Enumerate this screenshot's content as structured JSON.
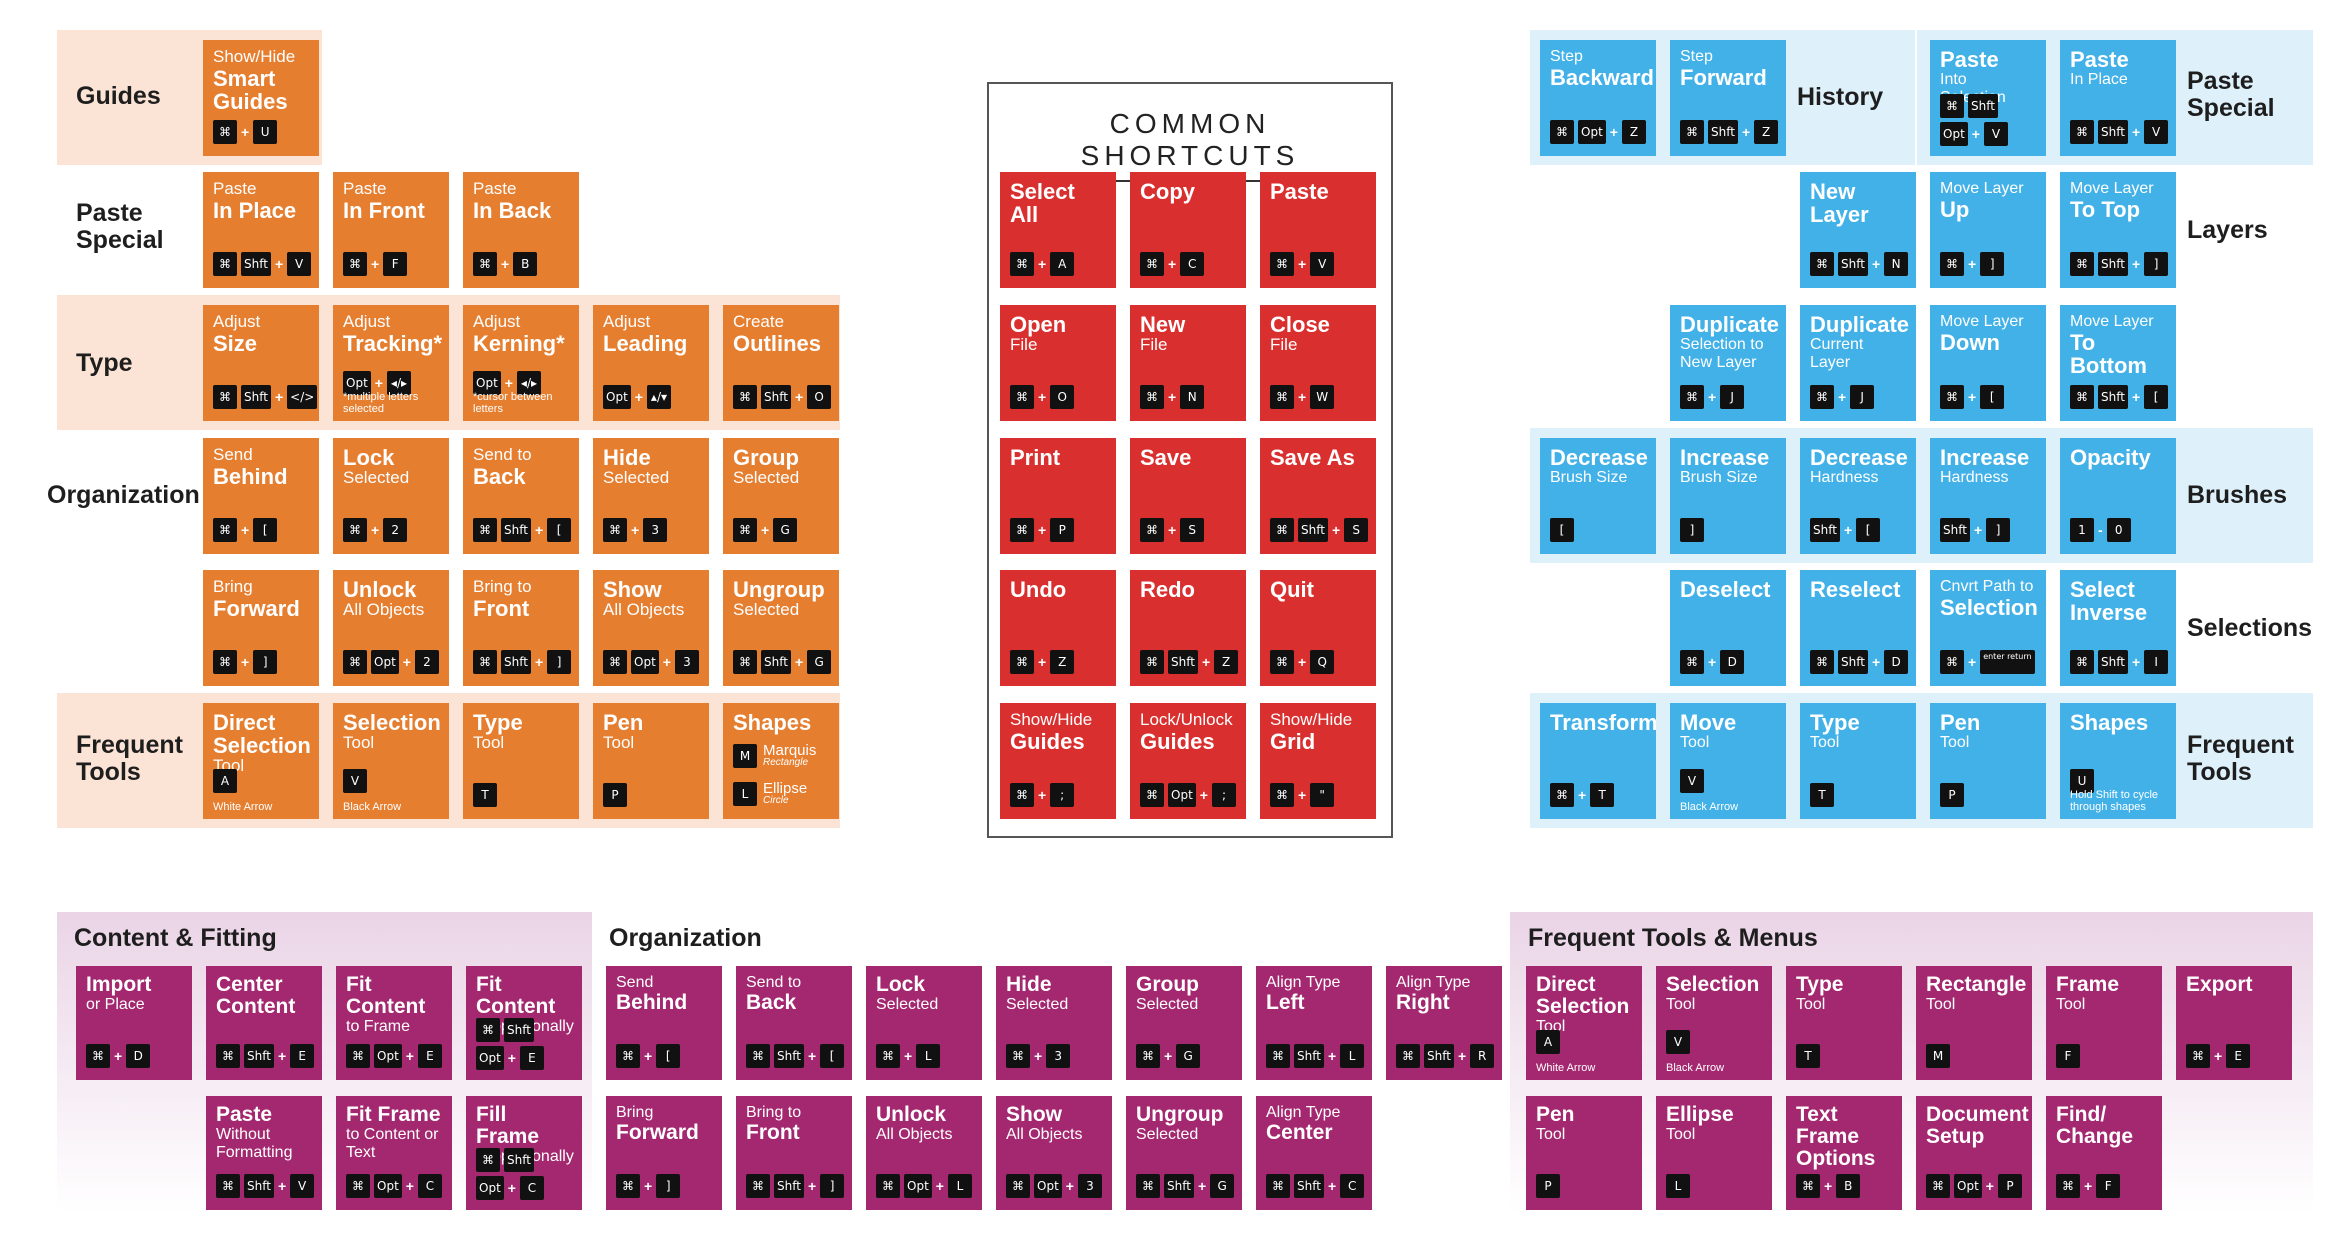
{
  "common_title": "COMMON SHORTCUTS",
  "colors": {
    "illustrator_tile": "#e67e2f",
    "illustrator_band": "#fbe4d5",
    "common_tile": "#d9302f",
    "photoshop_tile": "#42b1e8",
    "photoshop_band": "#def1fb",
    "indesign_tile": "#a3286f",
    "indesign_band": "#ead4e6"
  },
  "ai_labels": {
    "guides": "Guides",
    "paste_special": [
      "Paste",
      "Special"
    ],
    "type": "Type",
    "organization": "Organization",
    "frequent_tools": [
      "Frequent",
      "Tools"
    ]
  },
  "ai_tiles": [
    {
      "pre": "Show/Hide",
      "big": [
        "Smart",
        "Guides"
      ],
      "keys": [
        "⌘",
        "+",
        "U"
      ],
      "notes": []
    },
    {
      "pre": "Paste",
      "big": [
        "In Place"
      ],
      "keys": [
        "⌘",
        "Shft",
        "+",
        "V"
      ],
      "notes": []
    },
    {
      "pre": "Paste",
      "big": [
        "In Front"
      ],
      "keys": [
        "⌘",
        "+",
        "F"
      ],
      "notes": []
    },
    {
      "pre": "Paste",
      "big": [
        "In Back"
      ],
      "keys": [
        "⌘",
        "+",
        "B"
      ],
      "notes": []
    },
    {
      "pre": "Adjust",
      "big": [
        "Size"
      ],
      "keys": [
        "⌘",
        "Shft",
        "+",
        "</>"
      ],
      "notes": []
    },
    {
      "pre": "Adjust",
      "big": [
        "Tracking*"
      ],
      "keys": [
        "Opt",
        "+",
        "◂/▸"
      ],
      "notes": [
        "*multiple letters selected"
      ]
    },
    {
      "pre": "Adjust",
      "big": [
        "Kerning*"
      ],
      "keys": [
        "Opt",
        "+",
        "◂/▸"
      ],
      "notes": [
        "*cursor between letters"
      ]
    },
    {
      "pre": "Adjust",
      "big": [
        "Leading"
      ],
      "keys": [
        "Opt",
        "+",
        "▴/▾"
      ],
      "notes": []
    },
    {
      "pre": "Create",
      "big": [
        "Outlines"
      ],
      "keys": [
        "⌘",
        "Shft",
        "+",
        "O"
      ],
      "notes": []
    },
    {
      "pre": "Send",
      "big": [
        "Behind"
      ],
      "keys": [
        "⌘",
        "+",
        "["
      ],
      "notes": []
    },
    {
      "pre": "",
      "big": [
        "Lock"
      ],
      "post": "Selected",
      "keys": [
        "⌘",
        "+",
        "2"
      ],
      "notes": []
    },
    {
      "pre": "Send to",
      "big": [
        "Back"
      ],
      "keys": [
        "⌘",
        "Shft",
        "+",
        "["
      ],
      "notes": []
    },
    {
      "pre": "",
      "big": [
        "Hide"
      ],
      "post": "Selected",
      "keys": [
        "⌘",
        "+",
        "3"
      ],
      "notes": []
    },
    {
      "pre": "",
      "big": [
        "Group"
      ],
      "post": "Selected",
      "keys": [
        "⌘",
        "+",
        "G"
      ],
      "notes": []
    },
    {
      "pre": "Bring",
      "big": [
        "Forward"
      ],
      "keys": [
        "⌘",
        "+",
        "]"
      ],
      "notes": []
    },
    {
      "pre": "",
      "big": [
        "Unlock"
      ],
      "post": "All Objects",
      "keys": [
        "⌘",
        "Opt",
        "+",
        "2"
      ],
      "notes": []
    },
    {
      "pre": "Bring to",
      "big": [
        "Front"
      ],
      "keys": [
        "⌘",
        "Shft",
        "+",
        "]"
      ],
      "notes": []
    },
    {
      "pre": "",
      "big": [
        "Show"
      ],
      "post": "All Objects",
      "keys": [
        "⌘",
        "Opt",
        "+",
        "3"
      ],
      "notes": []
    },
    {
      "pre": "",
      "big": [
        "Ungroup"
      ],
      "post": "Selected",
      "keys": [
        "⌘",
        "Shft",
        "+",
        "G"
      ],
      "notes": []
    },
    {
      "pre": "",
      "big": [
        "Direct",
        "Selection"
      ],
      "post": "Tool",
      "keys": [
        "A"
      ],
      "notes": [
        "White Arrow"
      ]
    },
    {
      "pre": "",
      "big": [
        "Selection"
      ],
      "post": "Tool",
      "keys": [
        "V"
      ],
      "notes": [
        "Black Arrow"
      ]
    },
    {
      "pre": "",
      "big": [
        "Type"
      ],
      "post": "Tool",
      "keys": [
        "T"
      ],
      "notes": []
    },
    {
      "pre": "",
      "big": [
        "Pen"
      ],
      "post": "Tool",
      "keys": [
        "P"
      ],
      "notes": []
    },
    {
      "pre": "",
      "big": [
        "Shapes"
      ],
      "keys": [],
      "notes": [],
      "shapes": [
        {
          "key": "M",
          "name": "Marquis",
          "sub": "Rectangle"
        },
        {
          "key": "L",
          "name": "Ellipse",
          "sub": "Circle"
        }
      ]
    }
  ],
  "common_tiles": [
    {
      "pre": "",
      "big": [
        "Select",
        "All"
      ],
      "keys": [
        "⌘",
        "+",
        "A"
      ]
    },
    {
      "pre": "",
      "big": [
        "Copy"
      ],
      "keys": [
        "⌘",
        "+",
        "C"
      ]
    },
    {
      "pre": "",
      "big": [
        "Paste"
      ],
      "keys": [
        "⌘",
        "+",
        "V"
      ]
    },
    {
      "pre": "",
      "big": [
        "Open"
      ],
      "post": "File",
      "keys": [
        "⌘",
        "+",
        "O"
      ]
    },
    {
      "pre": "",
      "big": [
        "New"
      ],
      "post": "File",
      "keys": [
        "⌘",
        "+",
        "N"
      ]
    },
    {
      "pre": "",
      "big": [
        "Close"
      ],
      "post": "File",
      "keys": [
        "⌘",
        "+",
        "W"
      ]
    },
    {
      "pre": "",
      "big": [
        "Print"
      ],
      "keys": [
        "⌘",
        "+",
        "P"
      ]
    },
    {
      "pre": "",
      "big": [
        "Save"
      ],
      "keys": [
        "⌘",
        "+",
        "S"
      ]
    },
    {
      "pre": "",
      "big": [
        "Save As"
      ],
      "keys": [
        "⌘",
        "Shft",
        "+",
        "S"
      ]
    },
    {
      "pre": "",
      "big": [
        "Undo"
      ],
      "keys": [
        "⌘",
        "+",
        "Z"
      ]
    },
    {
      "pre": "",
      "big": [
        "Redo"
      ],
      "keys": [
        "⌘",
        "Shft",
        "+",
        "Z"
      ]
    },
    {
      "pre": "",
      "big": [
        "Quit"
      ],
      "keys": [
        "⌘",
        "+",
        "Q"
      ]
    },
    {
      "pre": "Show/Hide",
      "big": [
        "Guides"
      ],
      "keys": [
        "⌘",
        "+",
        ";"
      ]
    },
    {
      "pre": "Lock/Unlock",
      "big": [
        "Guides"
      ],
      "keys": [
        "⌘",
        "Opt",
        "+",
        ";"
      ]
    },
    {
      "pre": "Show/Hide",
      "big": [
        "Grid"
      ],
      "keys": [
        "⌘",
        "+",
        "\""
      ]
    }
  ],
  "ps_labels": {
    "history": "History",
    "paste_special": [
      "Paste",
      "Special"
    ],
    "layers": "Layers",
    "brushes": "Brushes",
    "selections": "Selections",
    "frequent_tools": [
      "Frequent",
      "Tools"
    ]
  },
  "ps_tiles": [
    {
      "pre": "Step",
      "big": [
        "Backward"
      ],
      "keys": [
        "⌘",
        "Opt",
        "+",
        "Z"
      ],
      "notes": []
    },
    {
      "pre": "Step",
      "big": [
        "Forward"
      ],
      "keys": [
        "⌘",
        "Shft",
        "+",
        "Z"
      ],
      "notes": []
    },
    {
      "pre": "",
      "big": [
        "Paste"
      ],
      "post": "Into Selection",
      "keys2": [
        [
          "⌘",
          "Shft"
        ],
        [
          "Opt",
          "+",
          "V"
        ]
      ],
      "notes": []
    },
    {
      "pre": "",
      "big": [
        "Paste"
      ],
      "post": "In Place",
      "keys": [
        "⌘",
        "Shft",
        "+",
        "V"
      ],
      "notes": []
    },
    {
      "pre": "",
      "big": [
        "New",
        "Layer"
      ],
      "keys": [
        "⌘",
        "Shft",
        "+",
        "N"
      ],
      "notes": []
    },
    {
      "pre": "Move Layer",
      "big": [
        "Up"
      ],
      "keys": [
        "⌘",
        "+",
        "]"
      ],
      "notes": []
    },
    {
      "pre": "Move Layer",
      "big": [
        "To Top"
      ],
      "keys": [
        "⌘",
        "Shft",
        "+",
        "]"
      ],
      "notes": []
    },
    {
      "pre": "",
      "big": [
        "Duplicate"
      ],
      "post": "Selection to New Layer",
      "keys": [
        "⌘",
        "+",
        "J"
      ],
      "notes": []
    },
    {
      "pre": "",
      "big": [
        "Duplicate"
      ],
      "post": "Current Layer",
      "keys": [
        "⌘",
        "+",
        "J"
      ],
      "notes": []
    },
    {
      "pre": "Move Layer",
      "big": [
        "Down"
      ],
      "keys": [
        "⌘",
        "+",
        "["
      ],
      "notes": []
    },
    {
      "pre": "Move Layer",
      "big": [
        "To Bottom"
      ],
      "keys": [
        "⌘",
        "Shft",
        "+",
        "["
      ],
      "notes": []
    },
    {
      "pre": "",
      "big": [
        "Decrease"
      ],
      "post": "Brush Size",
      "keys": [
        "["
      ],
      "notes": []
    },
    {
      "pre": "",
      "big": [
        "Increase"
      ],
      "post": "Brush Size",
      "keys": [
        "]"
      ],
      "notes": []
    },
    {
      "pre": "",
      "big": [
        "Decrease"
      ],
      "post": "Hardness",
      "keys": [
        "Shft",
        "+",
        "["
      ],
      "notes": []
    },
    {
      "pre": "",
      "big": [
        "Increase"
      ],
      "post": "Hardness",
      "keys": [
        "Shft",
        "+",
        "]"
      ],
      "notes": []
    },
    {
      "pre": "",
      "big": [
        "Opacity"
      ],
      "keys": [
        "1",
        "-",
        "0"
      ],
      "notes": []
    },
    {
      "pre": "",
      "big": [
        "Deselect"
      ],
      "keys": [
        "⌘",
        "+",
        "D"
      ],
      "notes": []
    },
    {
      "pre": "",
      "big": [
        "Reselect"
      ],
      "keys": [
        "⌘",
        "Shft",
        "+",
        "D"
      ],
      "notes": []
    },
    {
      "pre": "Cnvrt Path to",
      "big": [
        "Selection"
      ],
      "keys": [
        "⌘",
        "+",
        "enter return"
      ],
      "notes": []
    },
    {
      "pre": "",
      "big": [
        "Select",
        "Inverse"
      ],
      "keys": [
        "⌘",
        "Shft",
        "+",
        "I"
      ],
      "notes": []
    },
    {
      "pre": "",
      "big": [
        "Transform"
      ],
      "keys": [
        "⌘",
        "+",
        "T"
      ],
      "notes": []
    },
    {
      "pre": "",
      "big": [
        "Move"
      ],
      "post": "Tool",
      "keys": [
        "V"
      ],
      "notes": [
        "Black Arrow"
      ]
    },
    {
      "pre": "",
      "big": [
        "Type"
      ],
      "post": "Tool",
      "keys": [
        "T"
      ],
      "notes": []
    },
    {
      "pre": "",
      "big": [
        "Pen"
      ],
      "post": "Tool",
      "keys": [
        "P"
      ],
      "notes": []
    },
    {
      "pre": "",
      "big": [
        "Shapes"
      ],
      "keys": [
        "U"
      ],
      "notes": [
        "Hold Shift to cycle through shapes"
      ]
    }
  ],
  "id_sections": {
    "content_fitting": "Content & Fitting",
    "organization": "Organization",
    "frequent_tools_menus": "Frequent Tools & Menus"
  },
  "id_tiles": [
    {
      "pre": "",
      "big": [
        "Import"
      ],
      "post": "or Place",
      "keys": [
        "⌘",
        "+",
        "D"
      ],
      "notes": []
    },
    {
      "pre": "",
      "big": [
        "Center",
        "Content"
      ],
      "keys": [
        "⌘",
        "Shft",
        "+",
        "E"
      ],
      "notes": []
    },
    {
      "pre": "",
      "big": [
        "Fit Content"
      ],
      "post": "to Frame",
      "keys": [
        "⌘",
        "Opt",
        "+",
        "E"
      ],
      "notes": []
    },
    {
      "pre": "",
      "big": [
        "Fit Content"
      ],
      "post": "Proportionally",
      "keys2": [
        [
          "⌘",
          "Shft"
        ],
        [
          "Opt",
          "+",
          "E"
        ]
      ],
      "notes": []
    },
    {
      "pre": "",
      "big": [
        "Paste"
      ],
      "post": "Without Formatting",
      "keys": [
        "⌘",
        "Shft",
        "+",
        "V"
      ],
      "notes": []
    },
    {
      "pre": "",
      "big": [
        "Fit Frame"
      ],
      "post": "to Content or Text",
      "keys": [
        "⌘",
        "Opt",
        "+",
        "C"
      ],
      "notes": []
    },
    {
      "pre": "",
      "big": [
        "Fill Frame"
      ],
      "post": "Proportionally",
      "keys2": [
        [
          "⌘",
          "Shft"
        ],
        [
          "Opt",
          "+",
          "C"
        ]
      ],
      "notes": []
    },
    {
      "pre": "Send",
      "big": [
        "Behind"
      ],
      "keys": [
        "⌘",
        "+",
        "["
      ],
      "notes": []
    },
    {
      "pre": "Send to",
      "big": [
        "Back"
      ],
      "keys": [
        "⌘",
        "Shft",
        "+",
        "["
      ],
      "notes": []
    },
    {
      "pre": "",
      "big": [
        "Lock"
      ],
      "post": "Selected",
      "keys": [
        "⌘",
        "+",
        "L"
      ],
      "notes": []
    },
    {
      "pre": "",
      "big": [
        "Hide"
      ],
      "post": "Selected",
      "keys": [
        "⌘",
        "+",
        "3"
      ],
      "notes": []
    },
    {
      "pre": "",
      "big": [
        "Group"
      ],
      "post": "Selected",
      "keys": [
        "⌘",
        "+",
        "G"
      ],
      "notes": []
    },
    {
      "pre": "Align Type",
      "big": [
        "Left"
      ],
      "keys": [
        "⌘",
        "Shft",
        "+",
        "L"
      ],
      "notes": []
    },
    {
      "pre": "Align Type",
      "big": [
        "Right"
      ],
      "keys": [
        "⌘",
        "Shft",
        "+",
        "R"
      ],
      "notes": []
    },
    {
      "pre": "Bring",
      "big": [
        "Forward"
      ],
      "keys": [
        "⌘",
        "+",
        "]"
      ],
      "notes": []
    },
    {
      "pre": "Bring to",
      "big": [
        "Front"
      ],
      "keys": [
        "⌘",
        "Shft",
        "+",
        "]"
      ],
      "notes": []
    },
    {
      "pre": "",
      "big": [
        "Unlock"
      ],
      "post": "All Objects",
      "keys": [
        "⌘",
        "Opt",
        "+",
        "L"
      ],
      "notes": []
    },
    {
      "pre": "",
      "big": [
        "Show"
      ],
      "post": "All Objects",
      "keys": [
        "⌘",
        "Opt",
        "+",
        "3"
      ],
      "notes": []
    },
    {
      "pre": "",
      "big": [
        "Ungroup"
      ],
      "post": "Selected",
      "keys": [
        "⌘",
        "Shft",
        "+",
        "G"
      ],
      "notes": []
    },
    {
      "pre": "Align Type",
      "big": [
        "Center"
      ],
      "keys": [
        "⌘",
        "Shft",
        "+",
        "C"
      ],
      "notes": []
    },
    {
      "pre": "",
      "big": [
        "Direct",
        "Selection"
      ],
      "post": "Tool",
      "keys": [
        "A"
      ],
      "notes": [
        "White Arrow"
      ]
    },
    {
      "pre": "",
      "big": [
        "Selection"
      ],
      "post": "Tool",
      "keys": [
        "V"
      ],
      "notes": [
        "Black Arrow"
      ]
    },
    {
      "pre": "",
      "big": [
        "Type"
      ],
      "post": "Tool",
      "keys": [
        "T"
      ],
      "notes": []
    },
    {
      "pre": "",
      "big": [
        "Rectangle"
      ],
      "post": "Tool",
      "keys": [
        "M"
      ],
      "notes": []
    },
    {
      "pre": "",
      "big": [
        "Frame"
      ],
      "post": "Tool",
      "keys": [
        "F"
      ],
      "notes": []
    },
    {
      "pre": "",
      "big": [
        "Export"
      ],
      "keys": [
        "⌘",
        "+",
        "E"
      ],
      "notes": []
    },
    {
      "pre": "",
      "big": [
        "Pen"
      ],
      "post": "Tool",
      "keys": [
        "P"
      ],
      "notes": []
    },
    {
      "pre": "",
      "big": [
        "Ellipse"
      ],
      "post": "Tool",
      "keys": [
        "L"
      ],
      "notes": []
    },
    {
      "pre": "",
      "big": [
        "Text Frame",
        "Options"
      ],
      "keys": [
        "⌘",
        "+",
        "B"
      ],
      "notes": []
    },
    {
      "pre": "",
      "big": [
        "Document",
        "Setup"
      ],
      "keys": [
        "⌘",
        "Opt",
        "+",
        "P"
      ],
      "notes": []
    },
    {
      "pre": "",
      "big": [
        "Find/",
        "Change"
      ],
      "keys": [
        "⌘",
        "+",
        "F"
      ],
      "notes": []
    }
  ]
}
